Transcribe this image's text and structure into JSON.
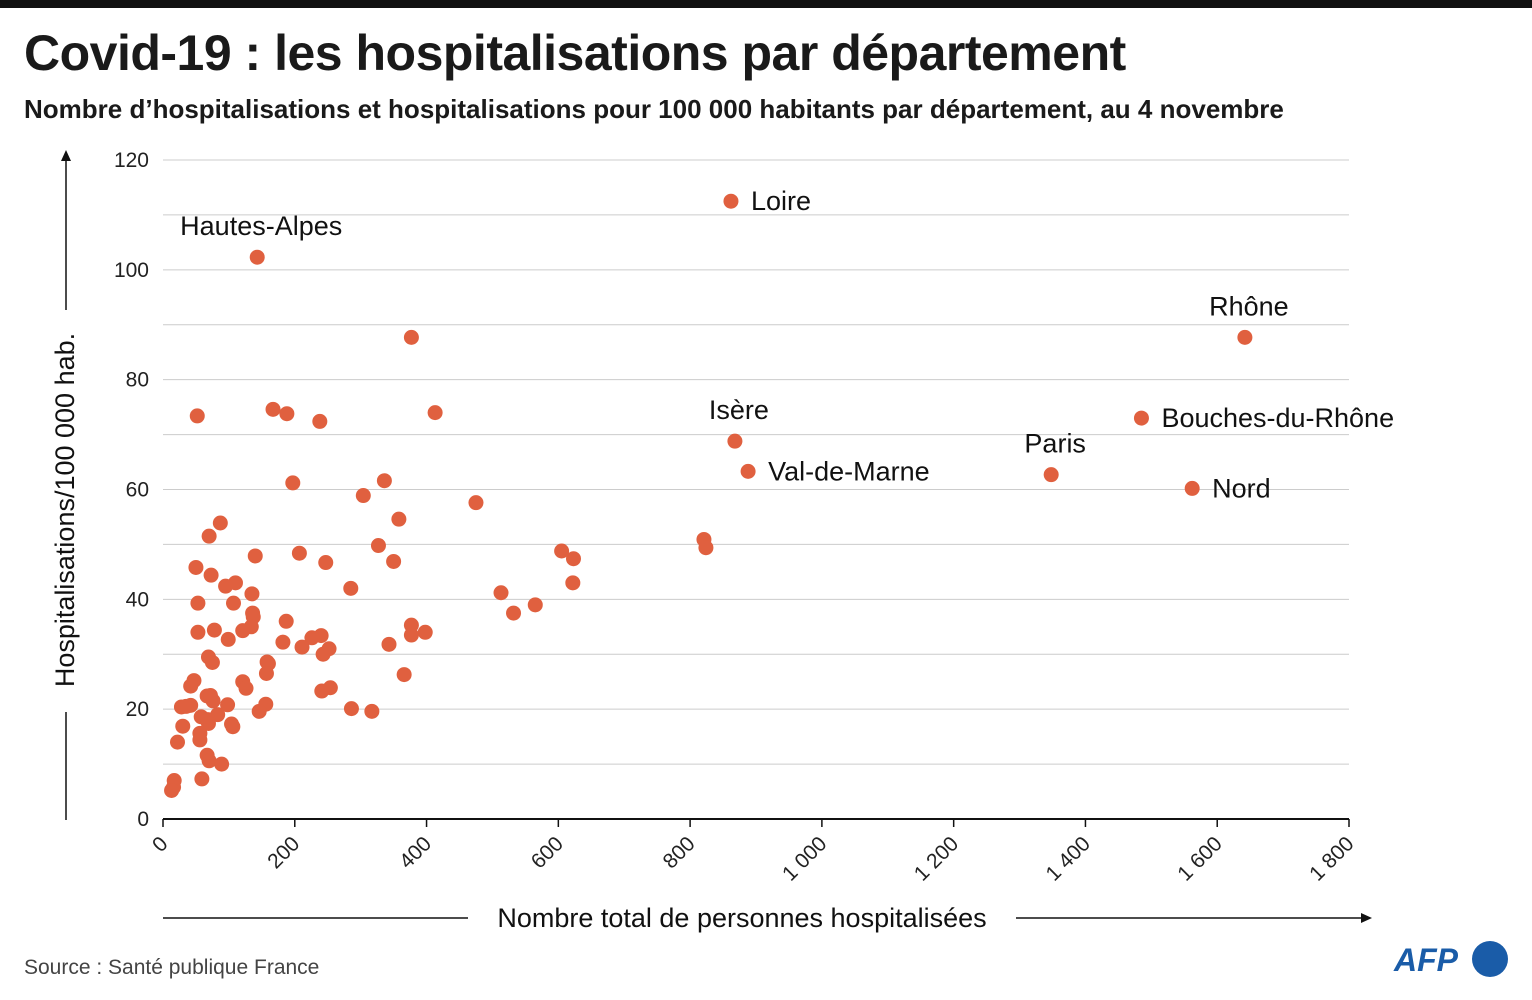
{
  "header": {
    "title": "Covid-19 : les hospitalisations par département",
    "subtitle": "Nombre d’hospitalisations et hospitalisations pour 100 000 habitants par département, au 4 novembre"
  },
  "footer": {
    "source": "Source : Santé publique France",
    "logo_text": "AFP"
  },
  "colors": {
    "point": "#e0603f",
    "grid": "#cccccc",
    "axis": "#111111",
    "logo": "#1a5ca8"
  },
  "chart_data": {
    "type": "scatter",
    "title": "Covid-19 : les hospitalisations par département",
    "subtitle": "Nombre d’hospitalisations et hospitalisations pour 100 000 habitants par département, au 4 novembre",
    "xlabel": "Nombre total de personnes hospitalisées",
    "ylabel": "Hospitalisations/100 000 hab.",
    "xlim": [
      0,
      1800
    ],
    "ylim": [
      0,
      120
    ],
    "x_ticks": [
      0,
      200,
      400,
      600,
      800,
      1000,
      1200,
      1400,
      1600,
      1800
    ],
    "x_tick_labels": [
      "0",
      "200",
      "400",
      "600",
      "800",
      "1 000",
      "1 200",
      "1 400",
      "1 600",
      "1 800"
    ],
    "y_ticks": [
      0,
      20,
      40,
      60,
      80,
      100,
      120
    ],
    "y_tick_labels": [
      "0",
      "20",
      "40",
      "60",
      "80",
      "100",
      "120"
    ],
    "y_gridlines": [
      0,
      10,
      20,
      30,
      40,
      50,
      60,
      70,
      80,
      90,
      100,
      110,
      120
    ],
    "grid": "horizontal",
    "labeled_points": [
      {
        "label": "Loire",
        "x": 862,
        "y": 112.5,
        "label_pos": "right"
      },
      {
        "label": "Hautes-Alpes",
        "x": 143,
        "y": 102.3,
        "label_pos": "above"
      },
      {
        "label": "Rhône",
        "x": 1642,
        "y": 87.7,
        "label_pos": "above"
      },
      {
        "label": "Bouches-du-Rhône",
        "x": 1485,
        "y": 73.0,
        "label_pos": "right"
      },
      {
        "label": "Isère",
        "x": 868,
        "y": 68.8,
        "label_pos": "above"
      },
      {
        "label": "Val-de-Marne",
        "x": 888,
        "y": 63.3,
        "label_pos": "right"
      },
      {
        "label": "Paris",
        "x": 1348,
        "y": 62.7,
        "label_pos": "above"
      },
      {
        "label": "Nord",
        "x": 1562,
        "y": 60.2,
        "label_pos": "right"
      }
    ],
    "points": [
      {
        "x": 377,
        "y": 87.7
      },
      {
        "x": 52,
        "y": 73.4
      },
      {
        "x": 167,
        "y": 74.6
      },
      {
        "x": 188,
        "y": 73.8
      },
      {
        "x": 238,
        "y": 72.4
      },
      {
        "x": 413,
        "y": 74.0
      },
      {
        "x": 197,
        "y": 61.2
      },
      {
        "x": 336,
        "y": 61.6
      },
      {
        "x": 304,
        "y": 58.9
      },
      {
        "x": 475,
        "y": 57.6
      },
      {
        "x": 358,
        "y": 54.6
      },
      {
        "x": 87,
        "y": 53.9
      },
      {
        "x": 70,
        "y": 51.5
      },
      {
        "x": 821,
        "y": 50.9
      },
      {
        "x": 824,
        "y": 49.4
      },
      {
        "x": 327,
        "y": 49.8
      },
      {
        "x": 605,
        "y": 48.8
      },
      {
        "x": 207,
        "y": 48.4
      },
      {
        "x": 140,
        "y": 47.9
      },
      {
        "x": 623,
        "y": 47.4
      },
      {
        "x": 350,
        "y": 46.9
      },
      {
        "x": 247,
        "y": 46.7
      },
      {
        "x": 50,
        "y": 45.8
      },
      {
        "x": 73,
        "y": 44.4
      },
      {
        "x": 110,
        "y": 43.0
      },
      {
        "x": 622,
        "y": 43.0
      },
      {
        "x": 95,
        "y": 42.4
      },
      {
        "x": 285,
        "y": 42.0
      },
      {
        "x": 513,
        "y": 41.2
      },
      {
        "x": 135,
        "y": 41.0
      },
      {
        "x": 53,
        "y": 39.3
      },
      {
        "x": 107,
        "y": 39.3
      },
      {
        "x": 565,
        "y": 39.0
      },
      {
        "x": 136,
        "y": 37.5
      },
      {
        "x": 532,
        "y": 37.5
      },
      {
        "x": 137,
        "y": 36.8
      },
      {
        "x": 187,
        "y": 36.0
      },
      {
        "x": 377,
        "y": 35.3
      },
      {
        "x": 134,
        "y": 35.0
      },
      {
        "x": 78,
        "y": 34.4
      },
      {
        "x": 121,
        "y": 34.3
      },
      {
        "x": 53,
        "y": 34.0
      },
      {
        "x": 398,
        "y": 34.0
      },
      {
        "x": 377,
        "y": 33.5
      },
      {
        "x": 240,
        "y": 33.4
      },
      {
        "x": 226,
        "y": 33.0
      },
      {
        "x": 99,
        "y": 32.7
      },
      {
        "x": 182,
        "y": 32.2
      },
      {
        "x": 343,
        "y": 31.8
      },
      {
        "x": 211,
        "y": 31.3
      },
      {
        "x": 252,
        "y": 31.0
      },
      {
        "x": 243,
        "y": 30.0
      },
      {
        "x": 69,
        "y": 29.5
      },
      {
        "x": 75,
        "y": 28.5
      },
      {
        "x": 158,
        "y": 28.6
      },
      {
        "x": 160,
        "y": 28.3
      },
      {
        "x": 157,
        "y": 26.5
      },
      {
        "x": 366,
        "y": 26.3
      },
      {
        "x": 47,
        "y": 25.2
      },
      {
        "x": 121,
        "y": 25.0
      },
      {
        "x": 42,
        "y": 24.2
      },
      {
        "x": 126,
        "y": 23.8
      },
      {
        "x": 254,
        "y": 23.9
      },
      {
        "x": 241,
        "y": 23.3
      },
      {
        "x": 67,
        "y": 22.4
      },
      {
        "x": 72,
        "y": 22.5
      },
      {
        "x": 76,
        "y": 21.5
      },
      {
        "x": 42,
        "y": 20.7
      },
      {
        "x": 98,
        "y": 20.8
      },
      {
        "x": 156,
        "y": 20.9
      },
      {
        "x": 28,
        "y": 20.4
      },
      {
        "x": 35,
        "y": 20.5
      },
      {
        "x": 286,
        "y": 20.1
      },
      {
        "x": 146,
        "y": 19.6
      },
      {
        "x": 317,
        "y": 19.6
      },
      {
        "x": 83,
        "y": 19.0
      },
      {
        "x": 58,
        "y": 18.6
      },
      {
        "x": 68,
        "y": 18.1
      },
      {
        "x": 69,
        "y": 17.4
      },
      {
        "x": 104,
        "y": 17.3
      },
      {
        "x": 106,
        "y": 16.8
      },
      {
        "x": 30,
        "y": 16.9
      },
      {
        "x": 56,
        "y": 15.6
      },
      {
        "x": 56,
        "y": 14.4
      },
      {
        "x": 22,
        "y": 14.0
      },
      {
        "x": 67,
        "y": 11.6
      },
      {
        "x": 70,
        "y": 10.6
      },
      {
        "x": 89,
        "y": 10.0
      },
      {
        "x": 59,
        "y": 7.3
      },
      {
        "x": 17,
        "y": 7.0
      },
      {
        "x": 16,
        "y": 5.8
      },
      {
        "x": 13,
        "y": 5.2
      }
    ]
  }
}
